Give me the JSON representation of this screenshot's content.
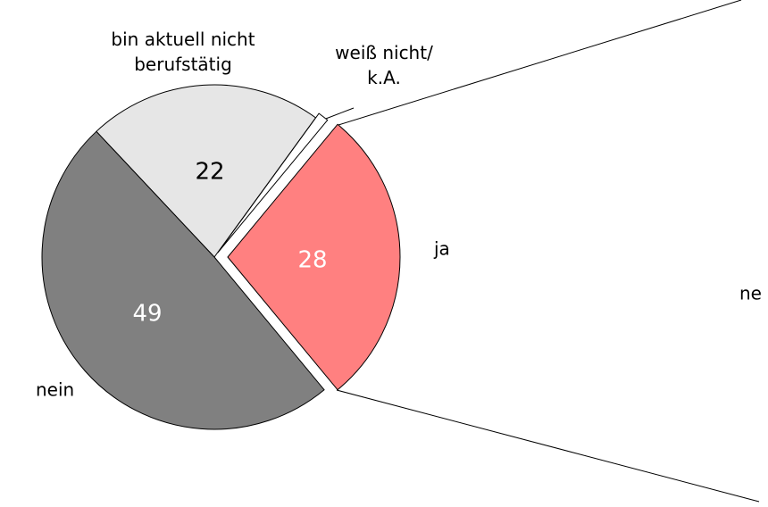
{
  "chart_data": {
    "type": "pie",
    "categories": [
      "ja",
      "weiß nicht/\nk.A.",
      "bin aktuell nicht\nberufstätig",
      "nein"
    ],
    "values": [
      28,
      1,
      22,
      49
    ],
    "value_labels": [
      "28",
      null,
      "22",
      "49"
    ],
    "colors": [
      "#ff8080",
      "#ffffff",
      "#e6e6e6",
      "#808080"
    ],
    "annotations": [
      "ne"
    ]
  }
}
